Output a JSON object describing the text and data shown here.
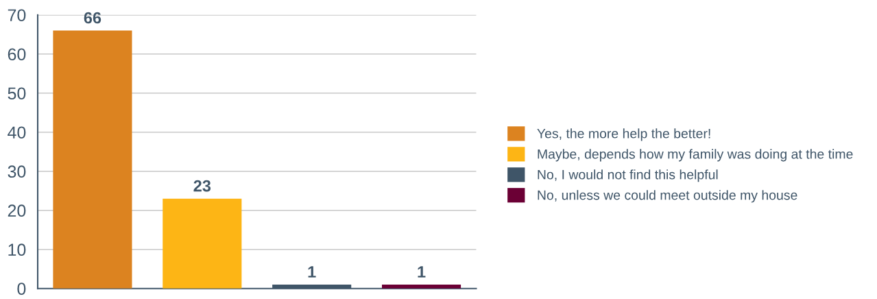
{
  "chart_data": {
    "type": "bar",
    "categories": [
      null,
      null,
      null,
      null
    ],
    "series": [
      {
        "name": "Yes, the more help the better!",
        "color": "#dc8320",
        "values": [
          66,
          null,
          null,
          null
        ]
      },
      {
        "name": "Maybe, depends how my family was doing at the time",
        "color": "#fdb515",
        "values": [
          null,
          23,
          null,
          null
        ]
      },
      {
        "name": "No, I would not find this helpful",
        "color": "#3f5568",
        "values": [
          null,
          null,
          1,
          null
        ]
      },
      {
        "name": "No, unless we could meet outside my house",
        "color": "#6b0035",
        "values": [
          null,
          null,
          null,
          1
        ]
      }
    ],
    "ylim": [
      0,
      70
    ],
    "yticks": [
      0,
      10,
      20,
      30,
      40,
      50,
      60,
      70
    ],
    "grid": "y",
    "legend": "right",
    "data_labels": true
  }
}
